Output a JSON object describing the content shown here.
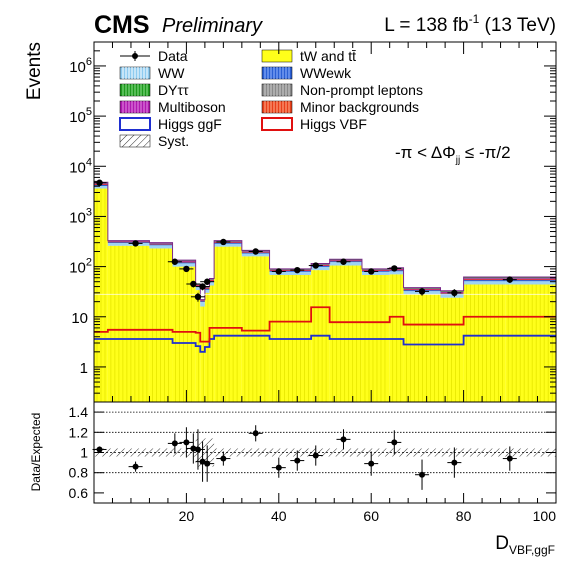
{
  "header": {
    "cms": "CMS",
    "preliminary": "Preliminary",
    "lumi_prefix": "L = 138 fb",
    "lumi_exp": "-1",
    "lumi_suffix": " (13 TeV)"
  },
  "region_label": {
    "prefix": "-π < ΔΦ",
    "sub": "jj",
    "suffix": " ≤ -π/2"
  },
  "legend": [
    {
      "label": "Data",
      "kind": "data"
    },
    {
      "label": "tW and tt̄",
      "kind": "fill",
      "color": "#ffff1a"
    },
    {
      "label": "WW",
      "kind": "fill",
      "color": "#8ecbf0",
      "hatch": "#ffffff"
    },
    {
      "label": "WWewk",
      "kind": "fill",
      "color": "#2a5fd4",
      "hatch": "#9bb8ff"
    },
    {
      "label": "DYττ",
      "kind": "fill",
      "color": "#1f9a1f",
      "hatch": "#8fe08f"
    },
    {
      "label": "Non-prompt leptons",
      "kind": "fill",
      "color": "#8a8a8a",
      "hatch": "#d0d0d0"
    },
    {
      "label": "Multiboson",
      "kind": "fill",
      "color": "#b01ab0",
      "hatch": "#e58ee5"
    },
    {
      "label": "Minor backgrounds",
      "kind": "fill",
      "color": "#e8401a",
      "hatch": "#ffb08f"
    },
    {
      "label": "Higgs ggF",
      "kind": "line",
      "color": "#1f2fd0"
    },
    {
      "label": "Higgs VBF",
      "kind": "line",
      "color": "#e01010"
    },
    {
      "label": "Syst.",
      "kind": "hatch"
    }
  ],
  "chart_data": [
    {
      "type": "bar",
      "ylabel": "Events",
      "yscale": "log",
      "ylim": [
        0.2,
        3000000
      ],
      "xlim": [
        0,
        100
      ],
      "y_ticks": [
        {
          "value": 1,
          "label": "1"
        },
        {
          "value": 10,
          "label": "10"
        },
        {
          "value": 100,
          "label": "10",
          "exp": "2"
        },
        {
          "value": 1000,
          "label": "10",
          "exp": "3"
        },
        {
          "value": 10000,
          "label": "10",
          "exp": "4"
        },
        {
          "value": 100000,
          "label": "10",
          "exp": "5"
        },
        {
          "value": 1000000,
          "label": "10",
          "exp": "6"
        }
      ],
      "bins": [
        [
          0,
          3
        ],
        [
          3,
          12
        ],
        [
          12,
          17
        ],
        [
          17,
          22
        ],
        [
          22,
          23
        ],
        [
          23,
          24
        ],
        [
          24,
          25
        ],
        [
          25,
          26
        ],
        [
          26,
          32
        ],
        [
          32,
          38
        ],
        [
          38,
          47
        ],
        [
          47,
          51
        ],
        [
          51,
          58
        ],
        [
          58,
          64
        ],
        [
          64,
          67
        ],
        [
          67,
          75
        ],
        [
          75,
          80
        ],
        [
          80,
          89
        ],
        [
          89,
          100
        ]
      ],
      "stack_totals": [
        4800,
        330,
        300,
        135,
        45,
        22,
        40,
        58,
        330,
        210,
        90,
        115,
        140,
        90,
        95,
        38,
        33,
        62,
        62
      ],
      "ww_top": [
        4100,
        300,
        270,
        118,
        40,
        20,
        35,
        50,
        290,
        185,
        80,
        100,
        125,
        80,
        82,
        33,
        28,
        52,
        52
      ],
      "ttbar_top": [
        3600,
        260,
        230,
        100,
        34,
        16,
        30,
        42,
        250,
        160,
        68,
        85,
        105,
        68,
        70,
        28,
        24,
        44,
        44
      ],
      "higgs_ggf": [
        3.6,
        3.6,
        3.6,
        3.0,
        2.6,
        2.0,
        2.5,
        3.6,
        4.2,
        4.2,
        3.6,
        4.2,
        3.6,
        3.6,
        3.6,
        2.8,
        2.8,
        4.2,
        4.2
      ],
      "higgs_vbf": [
        5.0,
        5.5,
        5.5,
        5.0,
        4.8,
        3.2,
        3.2,
        6.0,
        6.0,
        5.3,
        8.0,
        15.5,
        7.8,
        7.8,
        10.0,
        7.0,
        7.0,
        10.0,
        10.0
      ],
      "data": [
        {
          "x": 1.2,
          "y": 4700
        },
        {
          "x": 9.0,
          "y": 290
        },
        {
          "x": 17.5,
          "y": 125
        },
        {
          "x": 20.0,
          "y": 90
        },
        {
          "x": 21.5,
          "y": 45
        },
        {
          "x": 22.5,
          "y": 25
        },
        {
          "x": 23.5,
          "y": 40
        },
        {
          "x": 24.5,
          "y": 50
        },
        {
          "x": 28.0,
          "y": 310
        },
        {
          "x": 35.0,
          "y": 200
        },
        {
          "x": 40.0,
          "y": 80
        },
        {
          "x": 44.0,
          "y": 85
        },
        {
          "x": 48.0,
          "y": 105
        },
        {
          "x": 54.0,
          "y": 125
        },
        {
          "x": 60.0,
          "y": 80
        },
        {
          "x": 65.0,
          "y": 92
        },
        {
          "x": 71.0,
          "y": 32
        },
        {
          "x": 78.0,
          "y": 30
        },
        {
          "x": 90.0,
          "y": 55
        }
      ]
    },
    {
      "type": "scatter",
      "ylabel": "Data/Expected",
      "xlabel": "D",
      "xlabel_sub": "VBF,ggF",
      "xlim": [
        0,
        100
      ],
      "ylim": [
        0.5,
        1.5
      ],
      "x_ticks": [
        20,
        40,
        60,
        80,
        100
      ],
      "y_ticks": [
        0.6,
        0.8,
        1,
        1.2,
        1.4
      ],
      "gridlines": [
        0.8,
        1.2,
        1.4
      ],
      "points": [
        {
          "x": 1.2,
          "y": 1.03,
          "err": 0.03
        },
        {
          "x": 9.0,
          "y": 0.86,
          "err": 0.05
        },
        {
          "x": 17.5,
          "y": 1.09,
          "err": 0.1
        },
        {
          "x": 20.0,
          "y": 1.1,
          "err": 0.15
        },
        {
          "x": 21.5,
          "y": 1.04,
          "err": 0.15
        },
        {
          "x": 22.5,
          "y": 1.03,
          "err": 0.2
        },
        {
          "x": 23.5,
          "y": 0.91,
          "err": 0.2
        },
        {
          "x": 24.5,
          "y": 0.89,
          "err": 0.18
        },
        {
          "x": 28.0,
          "y": 0.94,
          "err": 0.07
        },
        {
          "x": 35.0,
          "y": 1.19,
          "err": 0.08
        },
        {
          "x": 40.0,
          "y": 0.85,
          "err": 0.1
        },
        {
          "x": 44.0,
          "y": 0.92,
          "err": 0.1
        },
        {
          "x": 48.0,
          "y": 0.97,
          "err": 0.1
        },
        {
          "x": 54.0,
          "y": 1.13,
          "err": 0.1
        },
        {
          "x": 60.0,
          "y": 0.89,
          "err": 0.12
        },
        {
          "x": 65.0,
          "y": 1.1,
          "err": 0.12
        },
        {
          "x": 71.0,
          "y": 0.78,
          "err": 0.15
        },
        {
          "x": 78.0,
          "y": 0.9,
          "err": 0.15
        },
        {
          "x": 90.0,
          "y": 0.94,
          "err": 0.12
        }
      ]
    }
  ]
}
